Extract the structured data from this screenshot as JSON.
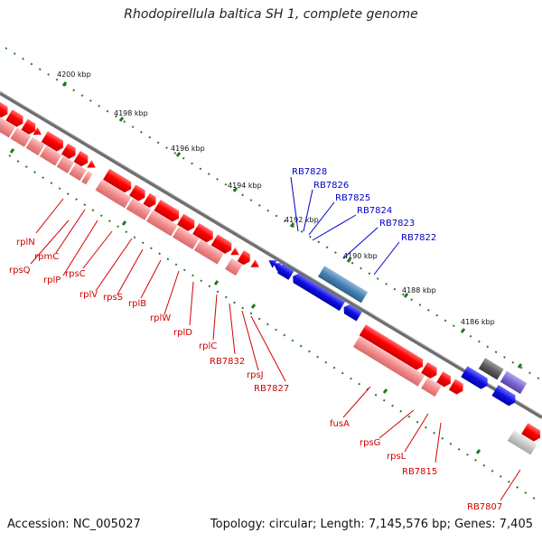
{
  "title": "Rhodopirellula baltica SH 1, complete genome",
  "accession": "Accession: NC_005027",
  "topology": "Topology: circular; Length: 7,145,576 bp; Genes: 7,405",
  "colors": {
    "forward": "#ff0000",
    "reverse": "#f28080",
    "cds_blue": "#1f1fe0",
    "steel": "#4682b4",
    "grey": "#6a6a6a",
    "purple": "#7b68d0",
    "label_red": "#d40000",
    "label_blue": "#0000c8",
    "ruler": "#2a7a2a",
    "backbone": "#808080"
  },
  "ruler": [
    "4200 kbp",
    "4198 kbp",
    "4196 kbp",
    "4194 kbp",
    "4192 kbp",
    "4190 kbp",
    "4188 kbp",
    "4186 kbp"
  ],
  "genes_red": [
    "rplN",
    "rpmC",
    "rpsQ",
    "rplP",
    "rpsC",
    "rplV",
    "rpsS",
    "rplB",
    "rplW",
    "rplD",
    "rplC",
    "RB7832",
    "rpsJ",
    "RB7827",
    "fusA",
    "rpsG",
    "rpsL",
    "RB7815",
    "RB7807"
  ],
  "genes_blue": [
    "RB7828",
    "RB7826",
    "RB7825",
    "RB7824",
    "RB7823",
    "RB7822"
  ]
}
